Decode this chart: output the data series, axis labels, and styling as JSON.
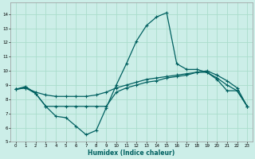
{
  "xlabel": "Humidex (Indice chaleur)",
  "xlim": [
    -0.5,
    23.5
  ],
  "ylim": [
    5,
    14.8
  ],
  "yticks": [
    5,
    6,
    7,
    8,
    9,
    10,
    11,
    12,
    13,
    14
  ],
  "xticks": [
    0,
    1,
    2,
    3,
    4,
    5,
    6,
    7,
    8,
    9,
    10,
    11,
    12,
    13,
    14,
    15,
    16,
    17,
    18,
    19,
    20,
    21,
    22,
    23
  ],
  "background_color": "#cceee8",
  "grid_color": "#aaddcc",
  "line_color": "#006060",
  "line1_x": [
    0,
    1,
    2,
    3,
    4,
    5,
    6,
    7,
    8,
    9,
    10,
    11,
    12,
    13,
    14,
    15,
    16,
    17,
    18,
    19,
    20,
    21,
    22,
    23
  ],
  "line1_y": [
    8.7,
    8.9,
    8.4,
    7.5,
    6.8,
    6.7,
    6.1,
    5.5,
    5.8,
    7.4,
    9.0,
    10.5,
    12.1,
    13.2,
    13.8,
    14.1,
    10.5,
    10.1,
    10.1,
    9.9,
    9.4,
    8.6,
    8.6,
    7.5
  ],
  "line2_x": [
    0,
    1,
    2,
    3,
    4,
    5,
    6,
    7,
    8,
    9,
    10,
    11,
    12,
    13,
    14,
    15,
    16,
    17,
    18,
    19,
    20,
    21,
    22,
    23
  ],
  "line2_y": [
    8.7,
    8.8,
    8.4,
    7.5,
    7.5,
    7.5,
    7.5,
    7.5,
    7.5,
    7.5,
    8.5,
    8.8,
    9.0,
    9.2,
    9.3,
    9.5,
    9.6,
    9.7,
    9.9,
    9.9,
    9.5,
    9.0,
    8.6,
    7.5
  ],
  "line3_x": [
    0,
    1,
    2,
    3,
    4,
    5,
    6,
    7,
    8,
    9,
    10,
    11,
    12,
    13,
    14,
    15,
    16,
    17,
    18,
    19,
    20,
    21,
    22,
    23
  ],
  "line3_y": [
    8.7,
    8.8,
    8.5,
    8.3,
    8.2,
    8.2,
    8.2,
    8.2,
    8.3,
    8.5,
    8.8,
    9.0,
    9.2,
    9.4,
    9.5,
    9.6,
    9.7,
    9.8,
    9.9,
    10.0,
    9.7,
    9.3,
    8.8,
    7.5
  ]
}
